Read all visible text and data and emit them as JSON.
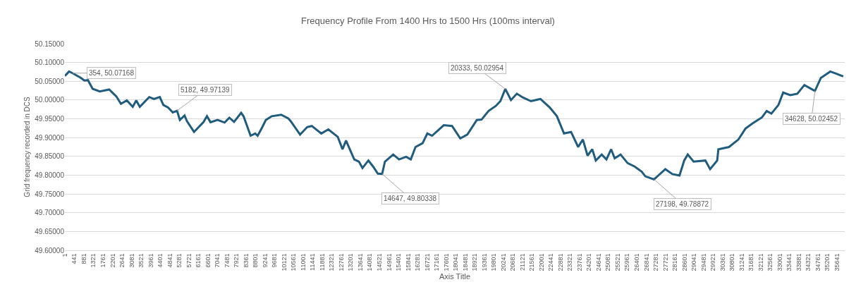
{
  "chart_data": {
    "type": "line",
    "title": "Frequency Profile From 1400 Hrs to 1500 Hrs (100ms interval)",
    "xlabel": "Axis Title",
    "ylabel": "Grid frequency recorded in DCS",
    "x": [
      1,
      196,
      354,
      740,
      904,
      1066,
      1283,
      1610,
      2046,
      2373,
      2589,
      2862,
      3133,
      3296,
      3460,
      3894,
      4112,
      4384,
      4547,
      4765,
      4982,
      5182,
      5310,
      5526,
      5636,
      5963,
      6178,
      6397,
      6560,
      6723,
      7050,
      7376,
      7594,
      7811,
      8137,
      8248,
      8574,
      8789,
      8900,
      9116,
      9279,
      9552,
      9987,
      10313,
      10422,
      10858,
      11185,
      11400,
      11838,
      12164,
      12598,
      12817,
      12980,
      13359,
      13577,
      13740,
      14011,
      14230,
      14448,
      14647,
      14775,
      15157,
      15427,
      15754,
      15970,
      16188,
      16514,
      16733,
      16951,
      17493,
      17875,
      18254,
      18580,
      19017,
      19235,
      19560,
      19886,
      20104,
      20333,
      20594,
      20865,
      21139,
      21518,
      21955,
      22389,
      22715,
      23042,
      23368,
      23695,
      23912,
      24130,
      24347,
      24510,
      24782,
      25000,
      25218,
      25382,
      25653,
      25979,
      26305,
      26632,
      26795,
      27198,
      27393,
      27719,
      28046,
      28372,
      28590,
      28753,
      29025,
      29569,
      29787,
      30113,
      30168,
      30657,
      31093,
      31419,
      31746,
      32180,
      32398,
      32615,
      32941,
      33159,
      33486,
      33812,
      34138,
      34573,
      34628,
      34899,
      35335,
      35661,
      35933
    ],
    "series": [
      {
        "color": "#1f5c7e",
        "values": [
          50.064,
          50.076,
          50.07168,
          50.059,
          50.052,
          50.053,
          50.03,
          50.023,
          50.028,
          50.01,
          49.99,
          49.999,
          49.982,
          49.999,
          49.982,
          50.008,
          50.003,
          50.008,
          49.987,
          49.98,
          49.967,
          49.97139,
          49.947,
          49.959,
          49.944,
          49.915,
          49.928,
          49.941,
          49.957,
          49.941,
          49.947,
          49.94,
          49.953,
          49.942,
          49.966,
          49.957,
          49.905,
          49.911,
          49.905,
          49.928,
          49.947,
          49.957,
          49.961,
          49.951,
          49.944,
          49.908,
          49.928,
          49.931,
          49.911,
          49.922,
          49.902,
          49.869,
          49.892,
          49.842,
          49.836,
          49.819,
          49.839,
          49.823,
          49.804,
          49.80338,
          49.836,
          49.855,
          49.842,
          49.849,
          49.842,
          49.875,
          49.885,
          49.911,
          49.905,
          49.933,
          49.931,
          49.898,
          49.908,
          49.947,
          49.948,
          49.971,
          49.984,
          49.997,
          50.02954,
          50.0,
          50.017,
          50.007,
          49.997,
          50.003,
          49.98,
          49.957,
          49.911,
          49.915,
          49.875,
          49.895,
          49.852,
          49.869,
          49.839,
          49.855,
          49.842,
          49.869,
          49.845,
          49.855,
          49.832,
          49.823,
          49.809,
          49.797,
          49.78872,
          49.799,
          49.816,
          49.803,
          49.799,
          49.839,
          49.855,
          49.836,
          49.839,
          49.816,
          49.839,
          49.869,
          49.875,
          49.895,
          49.924,
          49.938,
          49.954,
          49.971,
          49.964,
          49.987,
          50.02,
          50.013,
          50.017,
          50.04,
          50.026,
          50.02452,
          50.059,
          50.076,
          50.069,
          50.063
        ]
      }
    ],
    "xlim": [
      1,
      36000
    ],
    "xticks": [
      1,
      441,
      881,
      1321,
      1761,
      2201,
      2641,
      3081,
      3521,
      3961,
      4401,
      4841,
      5281,
      5721,
      6161,
      6601,
      7041,
      7481,
      7921,
      8361,
      8801,
      9241,
      9681,
      10121,
      10561,
      11001,
      11441,
      11881,
      12321,
      12761,
      13201,
      13641,
      14081,
      14521,
      14961,
      15401,
      15841,
      16281,
      16721,
      17161,
      17601,
      18041,
      18481,
      18921,
      19361,
      19801,
      20241,
      20681,
      21121,
      21561,
      22001,
      22441,
      22881,
      23321,
      23761,
      24201,
      24641,
      25081,
      25521,
      25961,
      26401,
      26841,
      27281,
      27721,
      28161,
      28601,
      29041,
      29481,
      29921,
      30361,
      30801,
      31241,
      31681,
      32121,
      32561,
      33001,
      33441,
      33881,
      34321,
      34761,
      35201,
      35641
    ],
    "ylim": [
      49.6,
      50.15
    ],
    "yticks": [
      {
        "value": 49.6,
        "label": "49.60000"
      },
      {
        "value": 49.65,
        "label": "49.65000"
      },
      {
        "value": 49.7,
        "label": "49.70000"
      },
      {
        "value": 49.75,
        "label": "49.75000"
      },
      {
        "value": 49.8,
        "label": "49.80000"
      },
      {
        "value": 49.85,
        "label": "49.85000"
      },
      {
        "value": 49.9,
        "label": "49.90000"
      },
      {
        "value": 49.95,
        "label": "49.95000"
      },
      {
        "value": 50.0,
        "label": "50.00000"
      },
      {
        "value": 50.05,
        "label": "50.05000"
      },
      {
        "value": 50.1,
        "label": "50.10000"
      },
      {
        "value": 50.15,
        "label": "50.15000"
      }
    ],
    "grid": "y",
    "marker": "none",
    "line_style": "solid",
    "annotations": [
      {
        "text": "354, 50.07168",
        "x": 354,
        "y": 50.07168
      },
      {
        "text": "5182, 49.97139",
        "x": 5182,
        "y": 49.97139
      },
      {
        "text": "14647, 49.80338",
        "x": 14647,
        "y": 49.80338
      },
      {
        "text": "20333, 50.02954",
        "x": 20333,
        "y": 50.02954
      },
      {
        "text": "27198, 49.78872",
        "x": 27198,
        "y": 49.78872
      },
      {
        "text": "34628, 50.02452",
        "x": 34628,
        "y": 50.02452
      }
    ]
  }
}
